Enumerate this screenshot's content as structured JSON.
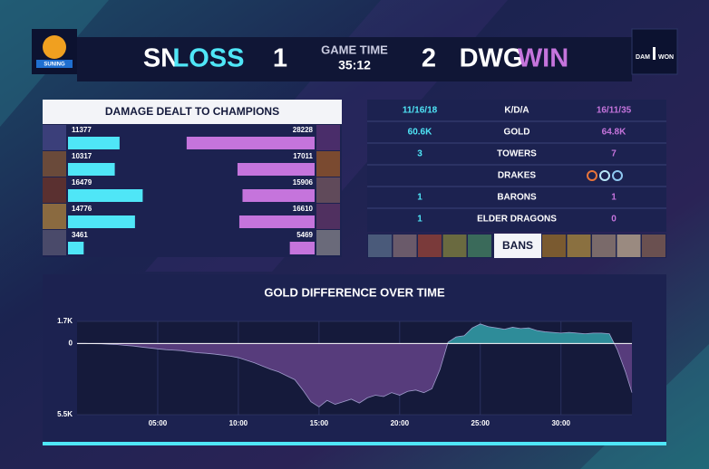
{
  "header": {
    "logo_left": "SUNING",
    "team_left": "SN",
    "result_left": "LOSS",
    "score_left": 1,
    "game_time_label": "GAME TIME",
    "game_time": "35:12",
    "score_right": 2,
    "team_right": "DWG",
    "result_right": "WIN",
    "logo_right": [
      "DAM",
      "WON"
    ]
  },
  "damage": {
    "title": "DAMAGE DEALT TO CHAMPIONS",
    "left": [
      11377,
      10317,
      16479,
      14776,
      3461
    ],
    "right": [
      28228,
      17011,
      15906,
      16610,
      5469
    ],
    "left_color": "#4fe6f7",
    "right_color": "#c574dc"
  },
  "stats": {
    "rows": [
      {
        "left": "11/16/18",
        "label": "K/D/A",
        "right": "16/11/35"
      },
      {
        "left": "60.6K",
        "label": "GOLD",
        "right": "64.8K"
      },
      {
        "left": 3,
        "label": "TOWERS",
        "right": 7
      },
      {
        "label": "DRAKES"
      },
      {
        "left": 1,
        "label": "BARONS",
        "right": 1
      },
      {
        "left": 1,
        "label": "ELDER DRAGONS",
        "right": 0
      }
    ],
    "bans_label": "BANS"
  },
  "chart_data": {
    "type": "area",
    "title": "GOLD DIFFERENCE OVER TIME",
    "x": [
      0,
      0.5,
      1,
      1.5,
      2,
      2.5,
      3,
      3.5,
      4,
      4.5,
      5,
      5.5,
      6,
      6.5,
      7,
      7.5,
      8,
      8.5,
      9,
      9.5,
      10,
      10.5,
      11,
      11.5,
      12,
      12.5,
      13,
      13.5,
      14,
      14.5,
      15,
      15.5,
      16,
      16.5,
      17,
      17.5,
      18,
      18.5,
      19,
      19.5,
      20,
      20.5,
      21,
      21.5,
      22,
      22.5,
      23,
      23.5,
      24,
      24.5,
      25,
      25.5,
      26,
      26.5,
      27,
      27.5,
      28,
      28.5,
      29,
      29.5,
      30,
      30.5,
      31,
      31.5,
      32,
      32.5,
      33,
      33.5,
      34,
      34.4
    ],
    "values": [
      0,
      0,
      -20,
      -30,
      -60,
      -90,
      -150,
      -200,
      -280,
      -350,
      -420,
      -480,
      -520,
      -560,
      -650,
      -720,
      -760,
      -820,
      -900,
      -980,
      -1100,
      -1300,
      -1500,
      -1750,
      -2000,
      -2200,
      -2500,
      -2800,
      -3600,
      -4500,
      -4900,
      -4400,
      -4700,
      -4500,
      -4300,
      -4600,
      -4200,
      -4000,
      -4100,
      -3800,
      -4000,
      -3700,
      -3600,
      -3800,
      -3500,
      -2000,
      100,
      500,
      600,
      1200,
      1500,
      1300,
      1200,
      1100,
      1250,
      1150,
      1200,
      1000,
      900,
      850,
      800,
      850,
      800,
      750,
      800,
      800,
      750,
      -500,
      -2200,
      -3800
    ],
    "xlim": [
      0,
      34.4
    ],
    "ylim": [
      -5500,
      1700
    ],
    "xticks": [
      {
        "value": 5,
        "label": "05:00"
      },
      {
        "value": 10,
        "label": "10:00"
      },
      {
        "value": 15,
        "label": "15:00"
      },
      {
        "value": 20,
        "label": "20:00"
      },
      {
        "value": 25,
        "label": "25:00"
      },
      {
        "value": 30,
        "label": "30:00"
      }
    ],
    "yticks": [
      {
        "value": 1700,
        "label": "1.7K"
      },
      0,
      {
        "value": -5500,
        "label": "5.5K"
      }
    ],
    "positive_color": "#2e8c99",
    "negative_color": "#573c7c",
    "grid": true
  }
}
